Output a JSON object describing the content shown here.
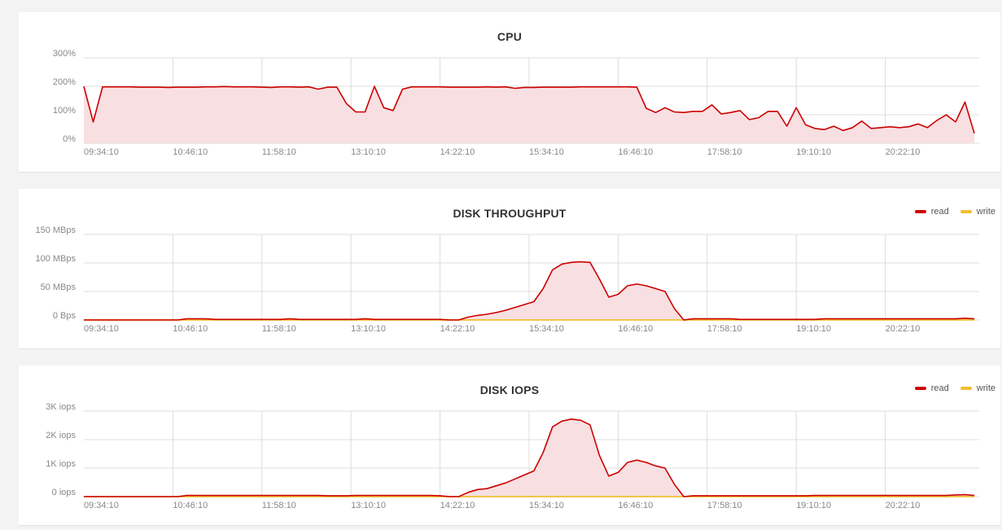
{
  "colors": {
    "read": "#cc0000",
    "read_fill": "#f8dfe1",
    "write": "#f0c030",
    "grid": "#dcdcdc"
  },
  "x_ticks": [
    "09:34:10",
    "10:46:10",
    "11:58:10",
    "13:10:10",
    "14:22:10",
    "15:34:10",
    "16:46:10",
    "17:58:10",
    "19:10:10",
    "20:22:10"
  ],
  "chart_data": [
    {
      "type": "area",
      "title": "CPU",
      "y_ticks": [
        "0%",
        "100%",
        "200%",
        "300%"
      ],
      "ylim": [
        0,
        300
      ],
      "grid": true,
      "legend": [],
      "series": [
        {
          "values": [
            200,
            75,
            198,
            198,
            198,
            198,
            197,
            197,
            197,
            196,
            197,
            197,
            197,
            198,
            198,
            199,
            198,
            198,
            198,
            197,
            196,
            198,
            198,
            197,
            198,
            190,
            197,
            197,
            140,
            110,
            110,
            200,
            125,
            115,
            190,
            198,
            198,
            198,
            198,
            197,
            197,
            197,
            197,
            198,
            197,
            198,
            193,
            196,
            196,
            197,
            197,
            197,
            197,
            198,
            198,
            198,
            198,
            198,
            198,
            197,
            123,
            108,
            125,
            110,
            108,
            112,
            112,
            135,
            103,
            108,
            115,
            83,
            90,
            112,
            112,
            60,
            125,
            65,
            52,
            48,
            60,
            45,
            55,
            78,
            52,
            55,
            58,
            55,
            58,
            68,
            55,
            80,
            100,
            75,
            145,
            35
          ]
        }
      ]
    },
    {
      "type": "area",
      "title": "DISK THROUGHPUT",
      "y_ticks": [
        "0 Bps",
        "50 MBps",
        "100 MBps",
        "150 MBps"
      ],
      "ylim": [
        0,
        150
      ],
      "grid": true,
      "legend": [
        "read",
        "write"
      ],
      "series": [
        {
          "name": "read",
          "values": [
            0,
            0,
            0,
            0,
            0,
            0,
            0,
            0,
            0,
            0,
            0,
            2,
            2,
            2,
            1,
            1,
            1,
            1,
            1,
            1,
            1,
            1,
            2,
            1,
            1,
            1,
            1,
            1,
            1,
            1,
            2,
            1,
            1,
            1,
            1,
            1,
            1,
            1,
            1,
            0,
            0,
            5,
            8,
            10,
            13,
            17,
            22,
            27,
            32,
            55,
            88,
            98,
            101,
            102,
            101,
            72,
            40,
            45,
            60,
            63,
            60,
            55,
            50,
            20,
            0,
            2,
            2,
            2,
            2,
            2,
            1,
            1,
            1,
            1,
            1,
            1,
            1,
            1,
            1,
            2,
            2,
            2,
            2,
            2,
            2,
            2,
            2,
            2,
            2,
            2,
            2,
            2,
            2,
            2,
            3,
            2
          ]
        },
        {
          "name": "write",
          "values": [
            0,
            0,
            0,
            0,
            0,
            0,
            0,
            0,
            0,
            0,
            0,
            0,
            0,
            0,
            0,
            0,
            0,
            0,
            0,
            0,
            0,
            0,
            0,
            0,
            0,
            0,
            0,
            0,
            0,
            0,
            0,
            0,
            0,
            0,
            0,
            0,
            0,
            0,
            0,
            0,
            0,
            0,
            0,
            0,
            0,
            0,
            0,
            0,
            0,
            0,
            0,
            0,
            0,
            0,
            0,
            0,
            0,
            0,
            0,
            0,
            0,
            0,
            0,
            0,
            0,
            0,
            0,
            0,
            0,
            0,
            0,
            0,
            0,
            0,
            0,
            0,
            0,
            0,
            0,
            0,
            0,
            0,
            0,
            0,
            0,
            0,
            0,
            0,
            0,
            0,
            0,
            0,
            0,
            0,
            0,
            0
          ]
        }
      ]
    },
    {
      "type": "area",
      "title": "DISK IOPS",
      "y_ticks": [
        "0 iops",
        "1K iops",
        "2K iops",
        "3K iops"
      ],
      "ylim": [
        0,
        3000
      ],
      "grid": true,
      "legend": [
        "read",
        "write"
      ],
      "series": [
        {
          "name": "read",
          "values": [
            0,
            0,
            0,
            0,
            0,
            0,
            0,
            0,
            0,
            0,
            0,
            40,
            40,
            40,
            40,
            40,
            40,
            40,
            40,
            40,
            40,
            40,
            40,
            40,
            40,
            40,
            30,
            30,
            30,
            40,
            40,
            40,
            40,
            40,
            40,
            40,
            40,
            40,
            30,
            0,
            0,
            150,
            250,
            280,
            380,
            480,
            620,
            760,
            900,
            1550,
            2450,
            2650,
            2720,
            2680,
            2520,
            1450,
            720,
            850,
            1200,
            1280,
            1200,
            1080,
            1000,
            430,
            0,
            30,
            30,
            30,
            30,
            30,
            30,
            30,
            30,
            30,
            30,
            30,
            30,
            30,
            40,
            40,
            40,
            40,
            40,
            40,
            40,
            40,
            40,
            40,
            40,
            40,
            40,
            40,
            40,
            60,
            70,
            40
          ]
        },
        {
          "name": "write",
          "values": [
            0,
            0,
            0,
            0,
            0,
            0,
            0,
            0,
            0,
            0,
            0,
            0,
            0,
            0,
            0,
            0,
            0,
            0,
            0,
            0,
            0,
            0,
            0,
            0,
            0,
            0,
            0,
            0,
            0,
            0,
            0,
            0,
            0,
            0,
            0,
            0,
            0,
            0,
            0,
            0,
            0,
            0,
            0,
            0,
            0,
            0,
            0,
            0,
            0,
            0,
            0,
            0,
            0,
            0,
            0,
            0,
            0,
            0,
            0,
            0,
            0,
            0,
            0,
            0,
            0,
            0,
            0,
            0,
            0,
            0,
            0,
            0,
            0,
            0,
            0,
            0,
            0,
            0,
            0,
            0,
            0,
            0,
            0,
            0,
            0,
            0,
            0,
            0,
            0,
            0,
            0,
            0,
            0,
            0,
            0,
            0
          ]
        }
      ]
    }
  ]
}
